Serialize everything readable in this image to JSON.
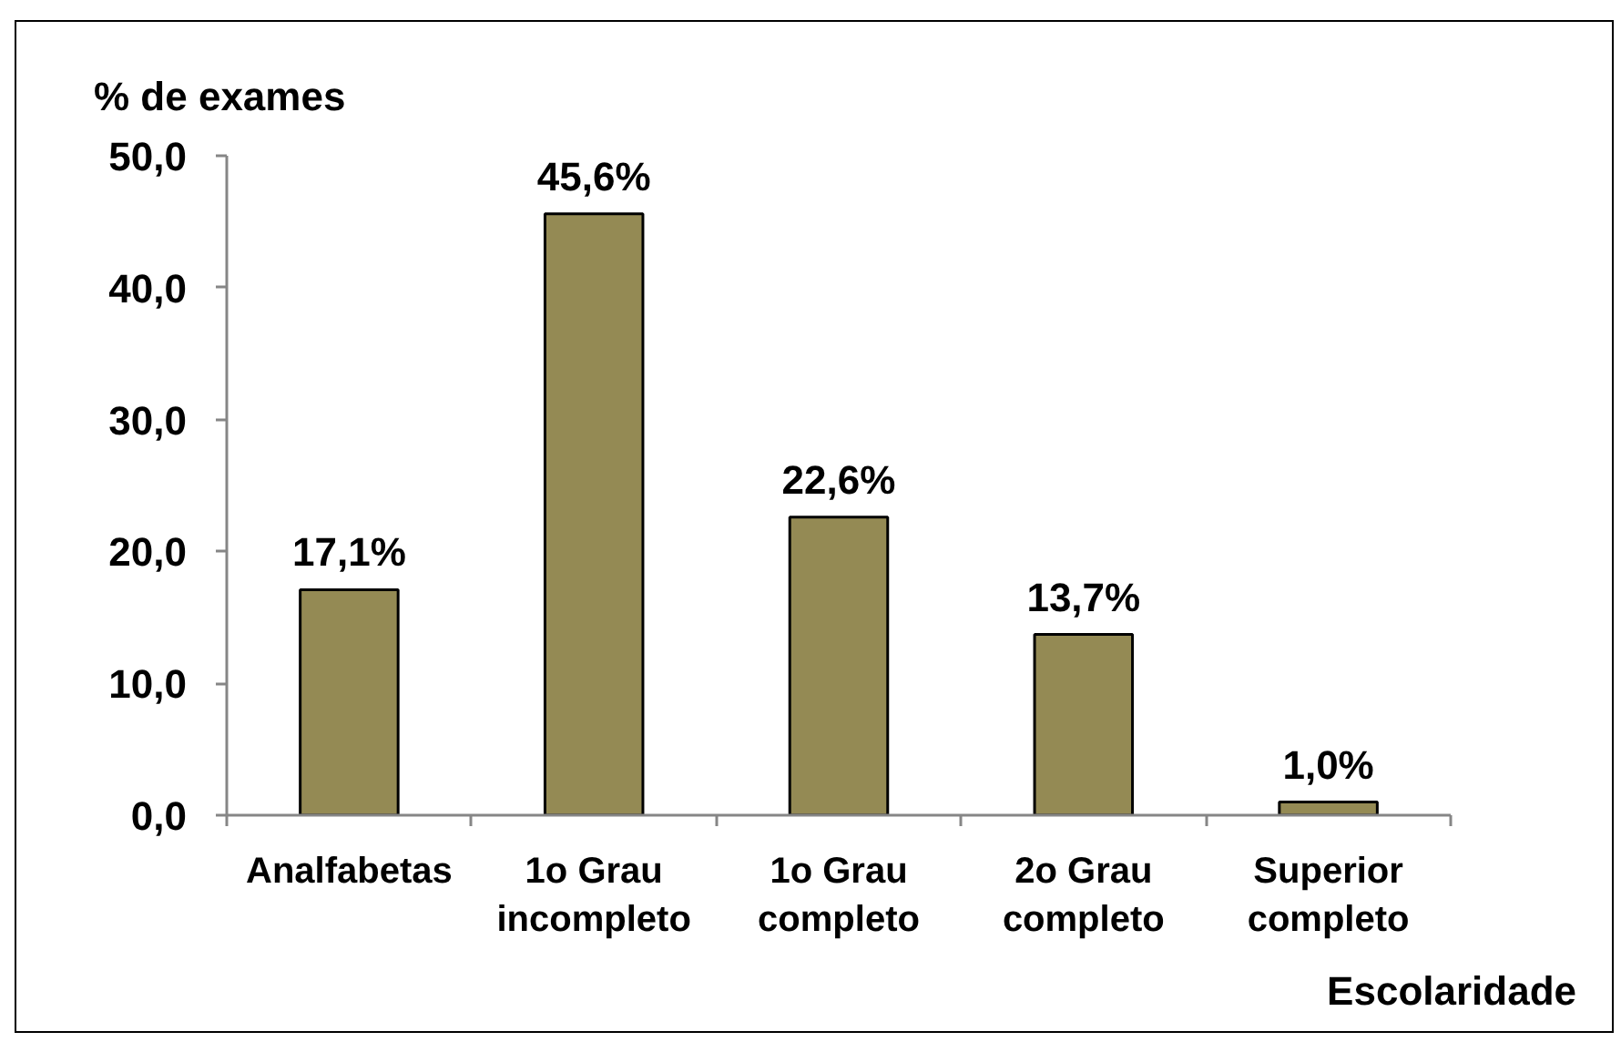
{
  "chart_data": {
    "type": "bar",
    "ylabel": "% de exames",
    "xlabel": "Escolaridade",
    "categories": [
      "Analfabetas",
      "1o Grau\nincompleto",
      "1o Grau\ncompleto",
      "2o Grau\ncompleto",
      "Superior\ncompleto"
    ],
    "values": [
      17.1,
      45.6,
      22.6,
      13.7,
      1.0
    ],
    "color": "#948a54",
    "value_labels": [
      "17,1%",
      "45,6%",
      "22,6%",
      "13,7%",
      "1,0%"
    ],
    "ylim": [
      0,
      50
    ],
    "yticks": [
      {
        "value": 0,
        "label": "0,0"
      },
      {
        "value": 10,
        "label": "10,0"
      },
      {
        "value": 20,
        "label": "20,0"
      },
      {
        "value": 30,
        "label": "30,0"
      },
      {
        "value": 40,
        "label": "40,0"
      },
      {
        "value": 50,
        "label": "50,0"
      }
    ],
    "grid": false
  }
}
